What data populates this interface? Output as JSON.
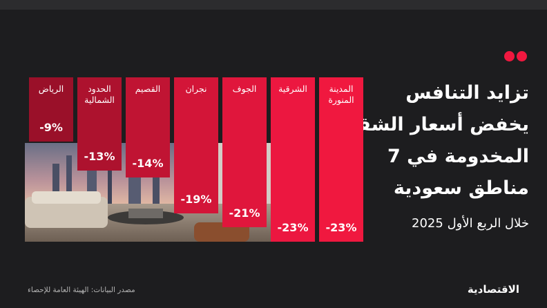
{
  "headline": {
    "lines": [
      "تزايد التنافس",
      "يخفض أسعار الشقق",
      "المخدومة في 7",
      "مناطق سعودية"
    ],
    "sub": "خلال الربع الأول 2025"
  },
  "source": "مصدر البيانات: الهيئة العامة للإحصاء",
  "logo": "الاقتصادية",
  "colors": {
    "background": "#1d1d1f",
    "bars": [
      "#f0183f",
      "#ec1740",
      "#e0163c",
      "#d31538",
      "#c01433",
      "#ad122e",
      "#9a1029"
    ]
  },
  "photo_description_icon": "apartment-interior-photo",
  "chart_data": {
    "type": "bar",
    "orientation": "vertical-panels",
    "categories": [
      "المدينة المنورة",
      "الشرقية",
      "الجوف",
      "نجران",
      "القصيم",
      "الحدود الشمالية",
      "الرياض"
    ],
    "values": [
      -23,
      -23,
      -21,
      -19,
      -14,
      -13,
      -9
    ],
    "labels": [
      "-23%",
      "-23%",
      "-21%",
      "-19%",
      "-14%",
      "-13%",
      "-9%"
    ],
    "ylim": [
      0,
      -25
    ]
  }
}
